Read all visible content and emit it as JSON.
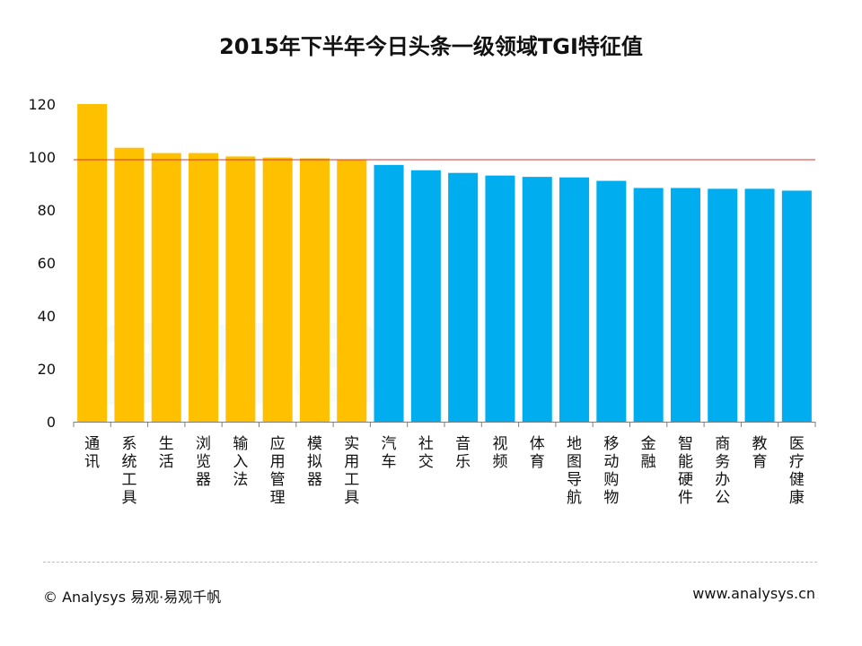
{
  "chart_data": {
    "type": "bar",
    "title": "2015年下半年今日头条一级领域TGI特征值",
    "xlabel": "",
    "ylabel": "",
    "ylim": [
      0,
      120
    ],
    "yticks": [
      0,
      20,
      40,
      60,
      80,
      100,
      120
    ],
    "reference_line": 99,
    "categories": [
      "通讯",
      "系统工具",
      "生活",
      "浏览器",
      "输入法",
      "应用管理",
      "模拟器",
      "实用工具",
      "汽车",
      "社交",
      "音乐",
      "视频",
      "体育",
      "地图导航",
      "移动购物",
      "金融",
      "智能硬件",
      "商务办公",
      "教育",
      "医疗健康"
    ],
    "values": [
      120,
      103.5,
      101.5,
      101.5,
      100.2,
      99.8,
      99.5,
      99,
      97,
      95,
      94,
      93,
      92.5,
      92.3,
      91,
      88.3,
      88.3,
      88,
      88,
      87.3
    ],
    "colors": {
      "above_100": "#FFC000",
      "below_100": "#00AEEF",
      "reference_line": "#D9302C",
      "axis": "#7F7F7F"
    }
  },
  "footer": {
    "left": "© Analysys 易观·易观千帆",
    "right": "www.analysys.cn"
  },
  "watermark": "ana"
}
